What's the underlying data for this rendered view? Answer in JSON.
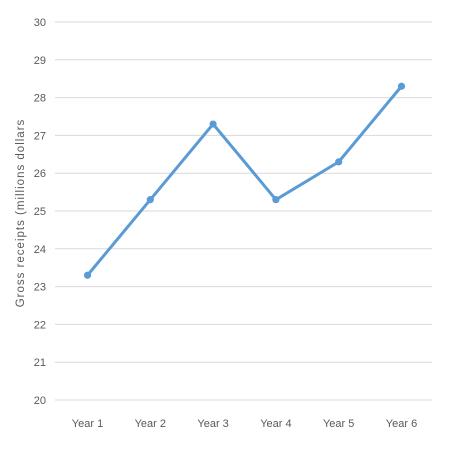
{
  "chart_data": {
    "type": "line",
    "title": "",
    "xlabel": "",
    "ylabel": "Gross receipts (millions dollars",
    "categories": [
      "Year 1",
      "Year 2",
      "Year 3",
      "Year 4",
      "Year 5",
      "Year 6"
    ],
    "series": [
      {
        "values": [
          23.3,
          25.3,
          27.3,
          25.3,
          26.3,
          28.3
        ]
      }
    ],
    "ylim": [
      20,
      30
    ],
    "y_ticks": [
      20,
      21,
      22,
      23,
      24,
      25,
      26,
      27,
      28,
      29,
      30
    ],
    "grid": "horizontal",
    "colors": {
      "line": "#5b9bd5",
      "grid": "#d9d9d9",
      "text": "#595959"
    }
  }
}
